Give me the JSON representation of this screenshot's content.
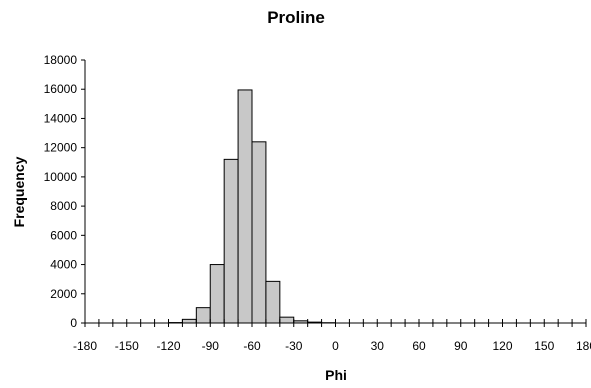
{
  "chart_data": {
    "type": "bar",
    "title": "Proline",
    "xlabel": "Phi",
    "ylabel": "Frequency",
    "bin_width": 10,
    "xlim": [
      -180,
      180
    ],
    "ylim": [
      0,
      18000
    ],
    "x_ticks": [
      -180,
      -150,
      -120,
      -90,
      -60,
      -30,
      0,
      30,
      60,
      90,
      120,
      150,
      180
    ],
    "y_ticks": [
      0,
      2000,
      4000,
      6000,
      8000,
      10000,
      12000,
      14000,
      16000,
      18000
    ],
    "bins": [
      {
        "start": -120,
        "end": -110,
        "value": 30
      },
      {
        "start": -110,
        "end": -100,
        "value": 250
      },
      {
        "start": -100,
        "end": -90,
        "value": 1050
      },
      {
        "start": -90,
        "end": -80,
        "value": 4000
      },
      {
        "start": -80,
        "end": -70,
        "value": 11200
      },
      {
        "start": -70,
        "end": -60,
        "value": 15950
      },
      {
        "start": -60,
        "end": -50,
        "value": 12400
      },
      {
        "start": -50,
        "end": -40,
        "value": 2850
      },
      {
        "start": -40,
        "end": -30,
        "value": 400
      },
      {
        "start": -30,
        "end": -20,
        "value": 150
      },
      {
        "start": -20,
        "end": -10,
        "value": 60
      },
      {
        "start": -10,
        "end": 0,
        "value": 20
      }
    ],
    "grid": false,
    "legend": "none"
  }
}
